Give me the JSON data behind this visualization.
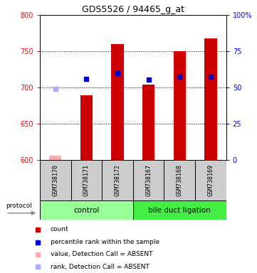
{
  "title": "GDS5526 / 94465_g_at",
  "samples": [
    "GSM738170",
    "GSM738171",
    "GSM738172",
    "GSM738167",
    "GSM738168",
    "GSM738169"
  ],
  "count_values": [
    606,
    689,
    760,
    704,
    750,
    768
  ],
  "rank_values": [
    698,
    712,
    720,
    711,
    715,
    715
  ],
  "absent_indices": [
    0
  ],
  "ylim_left": [
    600,
    800
  ],
  "ylim_right": [
    0,
    100
  ],
  "yticks_left": [
    600,
    650,
    700,
    750,
    800
  ],
  "yticks_right": [
    0,
    25,
    50,
    75,
    100
  ],
  "bar_color": "#cc0000",
  "rank_color": "#0000cc",
  "absent_bar_color": "#ffaaaa",
  "absent_rank_color": "#aaaaff",
  "control_color": "#99ff99",
  "bdl_color": "#44ee44",
  "background_color": "#ffffff",
  "legend_items": [
    "count",
    "percentile rank within the sample",
    "value, Detection Call = ABSENT",
    "rank, Detection Call = ABSENT"
  ],
  "legend_colors": [
    "#cc0000",
    "#0000cc",
    "#ffaaaa",
    "#aaaaff"
  ]
}
